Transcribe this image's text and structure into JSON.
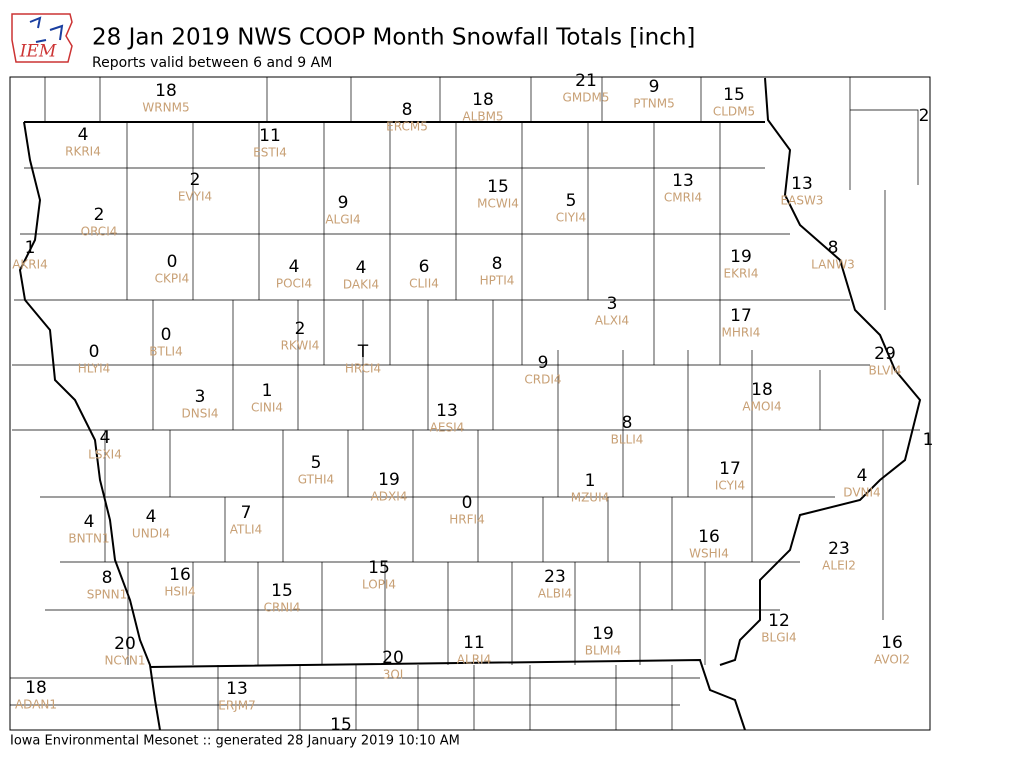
{
  "logo": "IEM",
  "header": {
    "title": "28 Jan 2019 NWS COOP Month Snowfall Totals [inch]",
    "subtitle": "Reports valid between 6 and 9 AM"
  },
  "stations": [
    {
      "value": 18,
      "id": "WRNM5"
    },
    {
      "value": 8,
      "id": "ERCM5"
    },
    {
      "value": 18,
      "id": "ALBM5"
    },
    {
      "value": 21,
      "id": "GMDM5"
    },
    {
      "value": 9,
      "id": "PTNM5"
    },
    {
      "value": 15,
      "id": "CLDM5"
    },
    {
      "value": 2,
      "id": null
    },
    {
      "value": 4,
      "id": "RKRI4"
    },
    {
      "value": 11,
      "id": "ESTI4"
    },
    {
      "value": 2,
      "id": "EVYI4"
    },
    {
      "value": 15,
      "id": "MCWI4"
    },
    {
      "value": 5,
      "id": "CIYI4"
    },
    {
      "value": 13,
      "id": "CMRI4"
    },
    {
      "value": 13,
      "id": "EASW3"
    },
    {
      "value": 9,
      "id": "ALGI4"
    },
    {
      "value": 2,
      "id": "ORCI4"
    },
    {
      "value": 1,
      "id": "AKRI4"
    },
    {
      "value": 0,
      "id": "CKPI4"
    },
    {
      "value": 4,
      "id": "POCI4"
    },
    {
      "value": 4,
      "id": "DAKI4"
    },
    {
      "value": 6,
      "id": "CLII4"
    },
    {
      "value": 8,
      "id": "HPTI4"
    },
    {
      "value": 19,
      "id": "EKRI4"
    },
    {
      "value": 8,
      "id": "LANW3"
    },
    {
      "value": 3,
      "id": "ALXI4"
    },
    {
      "value": 17,
      "id": "MHRI4"
    },
    {
      "value": 0,
      "id": "BTLI4"
    },
    {
      "value": 2,
      "id": "RKWI4"
    },
    {
      "value": 0,
      "id": "HLYI4"
    },
    {
      "value": "T",
      "id": "HRCI4"
    },
    {
      "value": 9,
      "id": "CRDI4"
    },
    {
      "value": 29,
      "id": "BLVI4"
    },
    {
      "value": 1,
      "id": "CINI4"
    },
    {
      "value": 3,
      "id": "DNSI4"
    },
    {
      "value": 18,
      "id": "AMOI4"
    },
    {
      "value": 13,
      "id": "AESI4"
    },
    {
      "value": 8,
      "id": "BLLI4"
    },
    {
      "value": 4,
      "id": "LSXI4"
    },
    {
      "value": 1,
      "id": null
    },
    {
      "value": 5,
      "id": "GTHI4"
    },
    {
      "value": 19,
      "id": "ADXI4"
    },
    {
      "value": 17,
      "id": "ICYI4"
    },
    {
      "value": 4,
      "id": "DVNI4"
    },
    {
      "value": 1,
      "id": "MZUI4"
    },
    {
      "value": 0,
      "id": "HRFI4"
    },
    {
      "value": 7,
      "id": "ATLI4"
    },
    {
      "value": 4,
      "id": "UNDI4"
    },
    {
      "value": 4,
      "id": "BNTN1"
    },
    {
      "value": 16,
      "id": "WSHI4"
    },
    {
      "value": 23,
      "id": "ALEI2"
    },
    {
      "value": 15,
      "id": "LOPI4"
    },
    {
      "value": 23,
      "id": "ALBI4"
    },
    {
      "value": 16,
      "id": "HSII4"
    },
    {
      "value": 8,
      "id": "SPNN1"
    },
    {
      "value": 15,
      "id": "CRNI4"
    },
    {
      "value": 19,
      "id": "BLMI4"
    },
    {
      "value": 12,
      "id": "BLGI4"
    },
    {
      "value": 20,
      "id": "NCYN1"
    },
    {
      "value": 11,
      "id": "ALRI4"
    },
    {
      "value": 16,
      "id": "AVOI2"
    },
    {
      "value": 20,
      "id": "3OI"
    },
    {
      "value": 18,
      "id": "ADAN1"
    },
    {
      "value": 13,
      "id": "ERJM7"
    },
    {
      "value": 15,
      "id": null
    }
  ],
  "footer": "Iowa Environmental Mesonet :: generated 28 January 2019 10:10 AM"
}
